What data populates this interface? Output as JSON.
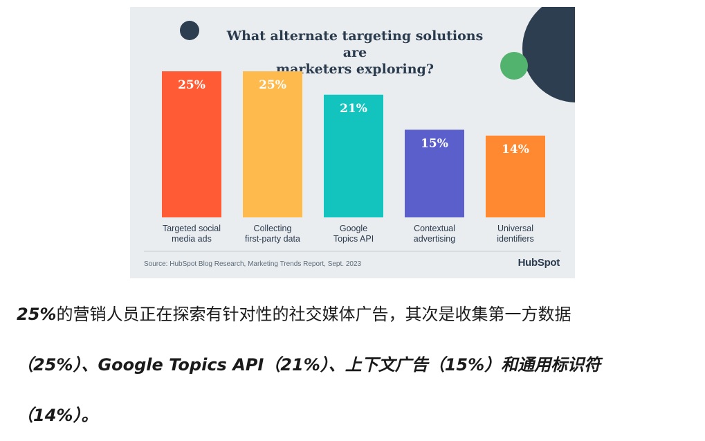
{
  "card": {
    "title_line1": "What alternate targeting solutions are",
    "title_line2": "marketers exploring?",
    "source": "Source: HubSpot Blog Research, Marketing Trends Report, Sept. 2023",
    "logo": "HubSpot"
  },
  "colors": {
    "background": "#eaedef",
    "navy": "#2d3e50",
    "green_dot": "#52b36f",
    "bars": [
      "#ff5c35",
      "#ffba4d",
      "#12c3be",
      "#5b5fcb",
      "#ff8931"
    ]
  },
  "chart_data": {
    "type": "bar",
    "title": "What alternate targeting solutions are marketers exploring?",
    "categories": [
      [
        "Targeted social",
        "media ads"
      ],
      [
        "Collecting",
        "first-party data"
      ],
      [
        "Google",
        "Topics API"
      ],
      [
        "Contextual",
        "advertising"
      ],
      [
        "Universal",
        "identifiers"
      ]
    ],
    "values": [
      25,
      25,
      21,
      15,
      14
    ],
    "value_labels": [
      "25%",
      "25%",
      "21%",
      "15%",
      "14%"
    ],
    "unit": "%",
    "ylim": [
      0,
      25
    ],
    "grid": false,
    "legend": "none"
  },
  "caption": {
    "segments": [
      {
        "text": "25%",
        "bold": true
      },
      {
        "text": "的营销人员正在探索有针对性的社交媒体广告，其次是收集第一方数据",
        "bold": false
      },
      {
        "text": "（25%）、Google Topics API（21%）、上下文广告（15%）和通用标识符",
        "bold": true
      },
      {
        "text": "（14%）。",
        "bold": true
      }
    ]
  }
}
